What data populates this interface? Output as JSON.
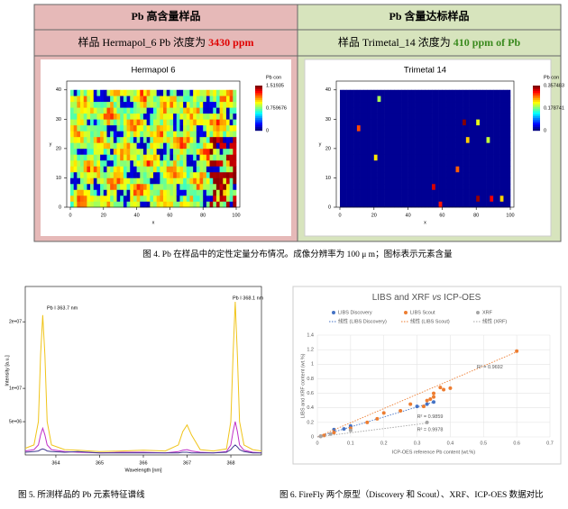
{
  "table": {
    "headers": [
      "Pb 高含量样品",
      "Pb 含量达标样品"
    ],
    "samples": [
      {
        "text": "样品 Hermapol_6 Pb 浓度为 ",
        "value": "3430 ppm"
      },
      {
        "text": "样品 Trimetal_14 浓度为 ",
        "value": "410 ppm of Pb"
      }
    ],
    "maps": [
      {
        "title": "Hermapol 6",
        "colorbar_title": "Pb con",
        "colorbar_ticks": [
          "1.51935",
          "0.759676",
          "0"
        ],
        "xlim": [
          0,
          100
        ],
        "ylim": [
          0,
          43
        ],
        "xticks": [
          0,
          20,
          40,
          60,
          80,
          100
        ],
        "yticks": [
          0,
          10,
          20,
          30,
          40
        ],
        "xlabel": "x",
        "ylabel": "y"
      },
      {
        "title": "Trimetal 14",
        "colorbar_title": "Pb con",
        "colorbar_ticks": [
          "0.357483",
          "0.178741",
          "0"
        ],
        "xlim": [
          0,
          100
        ],
        "ylim": [
          0,
          43
        ],
        "xticks": [
          0,
          20,
          40,
          60,
          80,
          100
        ],
        "yticks": [
          0,
          10,
          20,
          30,
          40
        ],
        "xlabel": "x",
        "ylabel": "y"
      }
    ]
  },
  "figure4": {
    "caption": "图 4. Pb 在样品中的定性定量分布情况。成像分辨率为 100 μ m；图标表示元素含量"
  },
  "figure5": {
    "type": "line",
    "caption": "图 5. 所测样品的 Pb 元素特征谱线",
    "xlabel": "Wavelength [nm]",
    "ylabel": "Intensity [a.u.]",
    "annotations": [
      "Pb I 363.7 nm",
      "Pb I 368.1 nm"
    ],
    "xlim": [
      363.3,
      368.7
    ],
    "ylim": [
      0,
      25300000
    ],
    "xticks": [
      364,
      365,
      366,
      367,
      368
    ],
    "yticks": [
      {
        "value": 5000000,
        "label": "5e+06"
      },
      {
        "value": 10000000,
        "label": "1e+07"
      },
      {
        "value": 20000000,
        "label": "2e+07"
      }
    ],
    "x": [
      363.3,
      363.5,
      363.6,
      363.65,
      363.7,
      363.75,
      363.8,
      363.9,
      364.2,
      364.5,
      365.0,
      365.5,
      366.0,
      366.5,
      366.8,
      366.9,
      367.0,
      367.1,
      367.3,
      367.6,
      367.9,
      368.0,
      368.05,
      368.1,
      368.15,
      368.2,
      368.3,
      368.5,
      368.7
    ],
    "series": [
      {
        "color": "#f0c419",
        "values": [
          1000000,
          1500000,
          5000000,
          15000000,
          21000000,
          15000000,
          5000000,
          1500000,
          800000,
          700000,
          500000,
          600000,
          700000,
          600000,
          1500000,
          3500000,
          4500000,
          3000000,
          800000,
          600000,
          900000,
          5000000,
          15000000,
          23000000,
          15000000,
          5000000,
          1500000,
          800000,
          600000
        ]
      },
      {
        "color": "#c030c8",
        "values": [
          600000,
          800000,
          1500000,
          3000000,
          4000000,
          3000000,
          1500000,
          800000,
          500000,
          400000,
          300000,
          400000,
          400000,
          300000,
          500000,
          700000,
          800000,
          600000,
          400000,
          300000,
          500000,
          1500000,
          3500000,
          5000000,
          3500000,
          1500000,
          700000,
          400000,
          300000
        ]
      },
      {
        "color": "#403890",
        "values": [
          400000,
          500000,
          600000,
          800000,
          900000,
          800000,
          600000,
          500000,
          400000,
          500000,
          300000,
          300000,
          300000,
          300000,
          300000,
          400000,
          400000,
          300000,
          300000,
          300000,
          400000,
          800000,
          1200000,
          1500000,
          1200000,
          800000,
          500000,
          300000,
          300000
        ]
      }
    ]
  },
  "figure6": {
    "type": "scatter",
    "caption": "图 6. FireFly 两个原型（Discovery 和 Scout）、XRF、ICP-OES 数据对比",
    "title": "LIBS and XRF ",
    "title_em": "vs",
    "title_end": " ICP-OES",
    "xlabel": "ICP-OES reference Pb content (wt.%)",
    "ylabel": "LIBS and XRF content (wt.%)",
    "xlim": [
      0,
      0.7
    ],
    "ylim": [
      0,
      1.4
    ],
    "xticks": [
      0,
      0.1,
      0.2,
      0.3,
      0.4,
      0.5,
      0.6,
      0.7
    ],
    "yticks": [
      0,
      0.2,
      0.4,
      0.6,
      0.8,
      1,
      1.2,
      1.4
    ],
    "annotations": [
      {
        "text": "R² = 0.9692",
        "x": 0.48,
        "y": 0.96
      },
      {
        "text": "R² = 0.9859",
        "x": 0.3,
        "y": 0.28
      },
      {
        "text": "R² = 0.9978",
        "x": 0.3,
        "y": 0.1
      }
    ],
    "series": [
      {
        "name": "LIBS Discovery",
        "color": "#4472c4",
        "x": [
          0.01,
          0.05,
          0.08,
          0.1,
          0.3,
          0.33,
          0.35
        ],
        "values": [
          0.01,
          0.1,
          0.11,
          0.15,
          0.42,
          0.45,
          0.48
        ],
        "trend": {
          "name": "线性 (LIBS Discovery)",
          "x": [
            0,
            0.35
          ],
          "values": [
            0,
            0.48
          ]
        }
      },
      {
        "name": "LIBS Scout",
        "color": "#ed7d31",
        "x": [
          0.01,
          0.02,
          0.05,
          0.1,
          0.15,
          0.18,
          0.2,
          0.25,
          0.28,
          0.32,
          0.33,
          0.34,
          0.35,
          0.35,
          0.37,
          0.38,
          0.4,
          0.6
        ],
        "values": [
          0.01,
          0.02,
          0.06,
          0.12,
          0.2,
          0.25,
          0.33,
          0.36,
          0.45,
          0.42,
          0.5,
          0.52,
          0.55,
          0.6,
          0.68,
          0.65,
          0.67,
          1.18
        ],
        "trend": {
          "name": "线性 (LIBS Scout)",
          "x": [
            0,
            0.6
          ],
          "values": [
            0,
            1.17
          ]
        }
      },
      {
        "name": "XRF",
        "color": "#a5a5a5",
        "x": [
          0.01,
          0.04,
          0.1,
          0.33
        ],
        "values": [
          0.01,
          0.04,
          0.09,
          0.2
        ],
        "trend": {
          "name": "线性 (XRF)",
          "x": [
            0,
            0.33
          ],
          "values": [
            0,
            0.19
          ]
        }
      }
    ]
  }
}
